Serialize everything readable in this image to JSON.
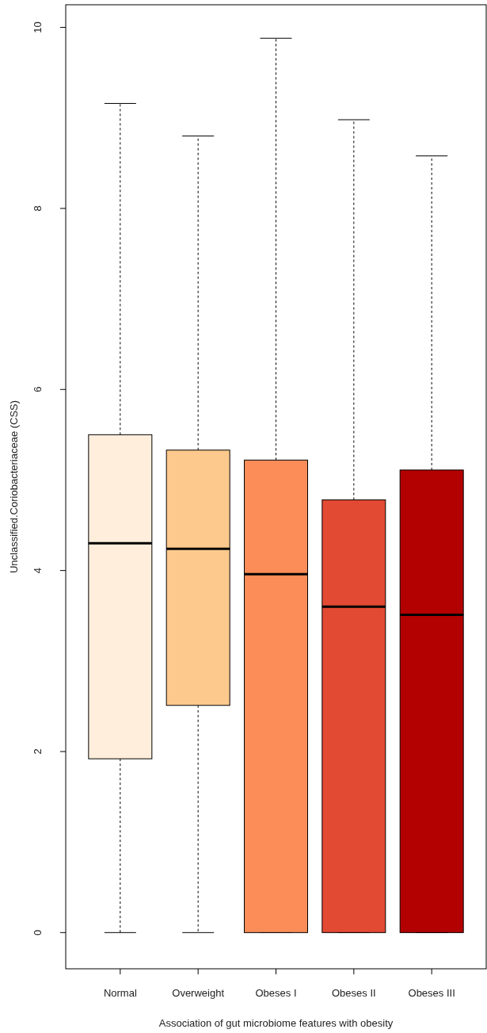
{
  "chart_data": {
    "type": "box",
    "xlabel": "Association of gut microbiome features with obesity",
    "ylabel": "Unclassified.Coriobacteriaceae (CSS)",
    "categories": [
      "Normal",
      "Overweight",
      "Obeses I",
      "Obeses II",
      "Obeses III"
    ],
    "colors": [
      "#feeedb",
      "#fdc98c",
      "#fc8d59",
      "#e34a33",
      "#b30000"
    ],
    "boxes": [
      {
        "low": 0,
        "q1": 1.92,
        "median": 4.3,
        "q3": 5.5,
        "high": 9.16
      },
      {
        "low": 0,
        "q1": 2.51,
        "median": 4.24,
        "q3": 5.33,
        "high": 8.8
      },
      {
        "low": 0,
        "q1": 0,
        "median": 3.96,
        "q3": 5.22,
        "high": 9.88
      },
      {
        "low": 0,
        "q1": 0,
        "median": 3.6,
        "q3": 4.78,
        "high": 8.98
      },
      {
        "low": 0,
        "q1": 0,
        "median": 3.51,
        "q3": 5.11,
        "high": 8.58
      }
    ],
    "ylim": [
      -0.4,
      10.25
    ],
    "yticks": [
      0,
      2,
      4,
      6,
      8,
      10
    ],
    "grid": false
  }
}
